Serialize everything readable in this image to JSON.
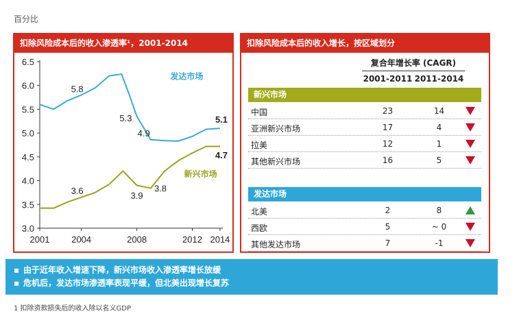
{
  "unit_label": "百分比",
  "left_panel": {
    "title": "扣除风险成本后的收入渗透率¹，2001-2014"
  },
  "chart_data": {
    "type": "line",
    "title": "扣除风险成本后的收入渗透率¹，2001-2014",
    "ylim": [
      3.0,
      6.5
    ],
    "yticks": [
      "3.0",
      "3.5",
      "4.0",
      "4.5",
      "5.0",
      "5.5",
      "6.0",
      "6.5"
    ],
    "xlim": [
      2001,
      2014.2
    ],
    "xticks": [
      "2001",
      "2004",
      "2008",
      "2012",
      "2014"
    ],
    "grid": false,
    "series": [
      {
        "name": "发达市场",
        "color": "#3aa9dc",
        "x": [
          2001,
          2002,
          2003,
          2004,
          2005,
          2006,
          2006.9,
          2007.4,
          2008,
          2009,
          2010,
          2011,
          2012,
          2013,
          2014
        ],
        "y": [
          5.6,
          5.5,
          5.68,
          5.8,
          5.95,
          6.2,
          6.24,
          5.85,
          5.35,
          4.86,
          4.84,
          4.83,
          4.93,
          5.08,
          5.1
        ]
      },
      {
        "name": "新兴市场",
        "color": "#98a51c",
        "x": [
          2001,
          2002,
          2003,
          2004,
          2005,
          2006,
          2007,
          2008,
          2009,
          2010,
          2011,
          2012,
          2013,
          2014
        ],
        "y": [
          3.42,
          3.42,
          3.55,
          3.65,
          3.75,
          3.92,
          4.2,
          3.9,
          3.84,
          4.2,
          4.42,
          4.58,
          4.72,
          4.72
        ]
      }
    ],
    "annotations": [
      "5.8",
      "5.3",
      "4.9",
      "5.1",
      "3.6",
      "3.9",
      "3.8",
      "4.7"
    ],
    "series_labels": [
      "发达市场",
      "新兴市场"
    ]
  },
  "right_panel": {
    "title": "扣除风险成本后的收入增长，按区域划分",
    "header_main": "复合年增长率 (CAGR)",
    "col_a": "2001-2011",
    "col_b": "2011-2014",
    "group_em": "新兴市场",
    "group_dev": "发达市场",
    "rows": [
      {
        "name": "中国",
        "a": "23",
        "b": "14",
        "trend": "down"
      },
      {
        "name": "亚洲新兴市场",
        "a": "17",
        "b": "4",
        "trend": "down"
      },
      {
        "name": "拉美",
        "a": "12",
        "b": "1",
        "trend": "down"
      },
      {
        "name": "其他新兴市场",
        "a": "16",
        "b": "5",
        "trend": "down"
      },
      {
        "name": "北美",
        "a": "2",
        "b": "8",
        "trend": "up"
      },
      {
        "name": "西欧",
        "a": "5",
        "b": "~ 0",
        "trend": "down"
      },
      {
        "name": "其他发达市场",
        "a": "7",
        "b": "-1",
        "trend": "down"
      }
    ]
  },
  "banner": {
    "bullet": "▪",
    "item1": "由于近年收入增速下降，新兴市场收入渗透率增长放缓",
    "item2": "危机后，发达市场渗透率表现平缓，但北美出现增长复苏"
  },
  "footnote": "1 扣除资款损失后的收入除以名义GDP"
}
